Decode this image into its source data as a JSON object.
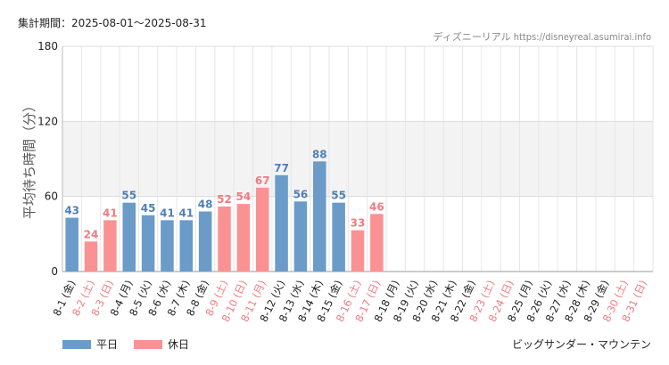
{
  "header": {
    "period_label": "集計期間：2025-08-01～2025-08-31",
    "credit": "ディズニーリアル https://disneyreal.asumirai.info"
  },
  "legend": {
    "weekday_label": "平日",
    "holiday_label": "休日"
  },
  "footer": {
    "attraction_name": "ビッグサンダー・マウンテン"
  },
  "colors": {
    "weekday": "#6b9bc8",
    "weekday_text": "#4f80b8",
    "holiday": "#fa9294",
    "holiday_text": "#f07b80",
    "grid": "#e6e6e6",
    "band": "#f3f3f3"
  },
  "chart_data": {
    "type": "bar",
    "title": "",
    "ylabel": "平均待ち時間（分）",
    "xlabel": "",
    "ylim": [
      0,
      180
    ],
    "yticks": [
      0,
      60,
      120,
      180
    ],
    "categories": [
      "8-1 (金)",
      "8-2 (土)",
      "8-3 (日)",
      "8-4 (月)",
      "8-5 (火)",
      "8-6 (水)",
      "8-7 (木)",
      "8-8 (金)",
      "8-9 (土)",
      "8-10 (日)",
      "8-11 (月)",
      "8-12 (火)",
      "8-13 (水)",
      "8-14 (木)",
      "8-15 (金)",
      "8-16 (土)",
      "8-17 (日)",
      "8-18 (月)",
      "8-19 (火)",
      "8-20 (水)",
      "8-21 (木)",
      "8-22 (金)",
      "8-23 (土)",
      "8-24 (日)",
      "8-25 (月)",
      "8-26 (火)",
      "8-27 (水)",
      "8-28 (木)",
      "8-29 (金)",
      "8-30 (土)",
      "8-31 (日)"
    ],
    "values": [
      43,
      24,
      41,
      55,
      45,
      41,
      41,
      48,
      52,
      54,
      67,
      77,
      56,
      88,
      55,
      33,
      46,
      null,
      null,
      null,
      null,
      null,
      null,
      null,
      null,
      null,
      null,
      null,
      null,
      null,
      null
    ],
    "day_type": [
      "weekday",
      "holiday",
      "holiday",
      "weekday",
      "weekday",
      "weekday",
      "weekday",
      "weekday",
      "holiday",
      "holiday",
      "holiday",
      "weekday",
      "weekday",
      "weekday",
      "weekday",
      "holiday",
      "holiday",
      "weekday",
      "weekday",
      "weekday",
      "weekday",
      "weekday",
      "holiday",
      "holiday",
      "weekday",
      "weekday",
      "weekday",
      "weekday",
      "weekday",
      "holiday",
      "holiday"
    ]
  }
}
